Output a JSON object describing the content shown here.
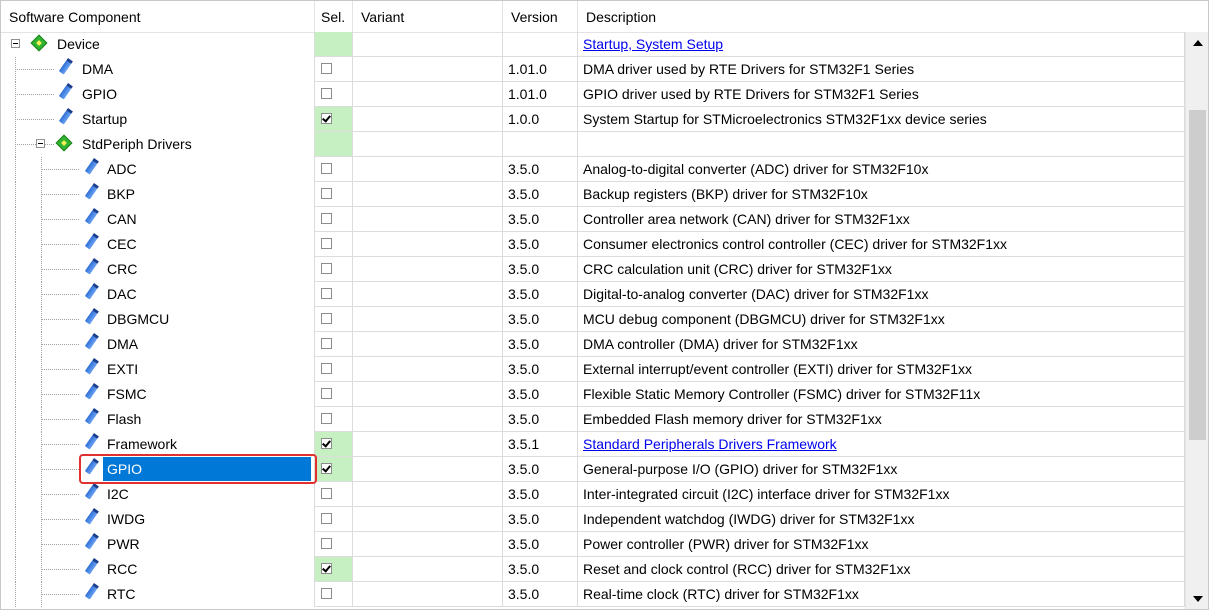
{
  "header": {
    "component": "Software Component",
    "sel": "Sel.",
    "variant": "Variant",
    "version": "Version",
    "description": "Description"
  },
  "rows": [
    {
      "name": "Device",
      "level": 0,
      "type": "group",
      "expanded": true,
      "sel": "group",
      "version": "",
      "description": "Startup, System Setup",
      "desc_link": true
    },
    {
      "name": "DMA",
      "level": 1,
      "type": "item",
      "sel": "unchecked",
      "version": "1.01.0",
      "description": "DMA driver used by RTE Drivers for STM32F1 Series"
    },
    {
      "name": "GPIO",
      "level": 1,
      "type": "item",
      "sel": "unchecked",
      "version": "1.01.0",
      "description": "GPIO driver used by RTE Drivers for STM32F1 Series"
    },
    {
      "name": "Startup",
      "level": 1,
      "type": "item",
      "sel": "checked",
      "version": "1.0.0",
      "description": "System Startup for STMicroelectronics STM32F1xx device series"
    },
    {
      "name": "StdPeriph Drivers",
      "level": 1,
      "type": "group",
      "expanded": true,
      "sel": "group",
      "version": "",
      "description": ""
    },
    {
      "name": "ADC",
      "level": 2,
      "type": "item",
      "sel": "unchecked",
      "version": "3.5.0",
      "description": "Analog-to-digital converter (ADC) driver for STM32F10x"
    },
    {
      "name": "BKP",
      "level": 2,
      "type": "item",
      "sel": "unchecked",
      "version": "3.5.0",
      "description": "Backup registers (BKP) driver for STM32F10x"
    },
    {
      "name": "CAN",
      "level": 2,
      "type": "item",
      "sel": "unchecked",
      "version": "3.5.0",
      "description": "Controller area network (CAN) driver for STM32F1xx"
    },
    {
      "name": "CEC",
      "level": 2,
      "type": "item",
      "sel": "unchecked",
      "version": "3.5.0",
      "description": "Consumer electronics control controller (CEC) driver for STM32F1xx"
    },
    {
      "name": "CRC",
      "level": 2,
      "type": "item",
      "sel": "unchecked",
      "version": "3.5.0",
      "description": "CRC calculation unit (CRC) driver for STM32F1xx"
    },
    {
      "name": "DAC",
      "level": 2,
      "type": "item",
      "sel": "unchecked",
      "version": "3.5.0",
      "description": "Digital-to-analog converter (DAC) driver for STM32F1xx"
    },
    {
      "name": "DBGMCU",
      "level": 2,
      "type": "item",
      "sel": "unchecked",
      "version": "3.5.0",
      "description": "MCU debug component (DBGMCU) driver for STM32F1xx"
    },
    {
      "name": "DMA",
      "level": 2,
      "type": "item",
      "sel": "unchecked",
      "version": "3.5.0",
      "description": "DMA controller (DMA) driver for STM32F1xx"
    },
    {
      "name": "EXTI",
      "level": 2,
      "type": "item",
      "sel": "unchecked",
      "version": "3.5.0",
      "description": "External interrupt/event controller (EXTI) driver for STM32F1xx"
    },
    {
      "name": "FSMC",
      "level": 2,
      "type": "item",
      "sel": "unchecked",
      "version": "3.5.0",
      "description": "Flexible Static Memory Controller (FSMC) driver for STM32F11x"
    },
    {
      "name": "Flash",
      "level": 2,
      "type": "item",
      "sel": "unchecked",
      "version": "3.5.0",
      "description": "Embedded Flash memory driver for STM32F1xx"
    },
    {
      "name": "Framework",
      "level": 2,
      "type": "item",
      "sel": "checked",
      "version": "3.5.1",
      "description": "Standard Peripherals Drivers Framework",
      "desc_link": true
    },
    {
      "name": "GPIO",
      "level": 2,
      "type": "item",
      "sel": "checked",
      "version": "3.5.0",
      "description": "General-purpose I/O (GPIO) driver for STM32F1xx",
      "selected": true
    },
    {
      "name": "I2C",
      "level": 2,
      "type": "item",
      "sel": "unchecked",
      "version": "3.5.0",
      "description": "Inter-integrated circuit (I2C) interface driver for STM32F1xx"
    },
    {
      "name": "IWDG",
      "level": 2,
      "type": "item",
      "sel": "unchecked",
      "version": "3.5.0",
      "description": "Independent watchdog (IWDG) driver for STM32F1xx"
    },
    {
      "name": "PWR",
      "level": 2,
      "type": "item",
      "sel": "unchecked",
      "version": "3.5.0",
      "description": "Power controller (PWR) driver for STM32F1xx"
    },
    {
      "name": "RCC",
      "level": 2,
      "type": "item",
      "sel": "checked",
      "version": "3.5.0",
      "description": "Reset and clock control (RCC) driver for STM32F1xx"
    },
    {
      "name": "RTC",
      "level": 2,
      "type": "item",
      "sel": "unchecked",
      "version": "3.5.0",
      "description": "Real-time clock (RTC) driver for STM32F1xx"
    }
  ],
  "colors": {
    "selected_row_bg": "#0078d7",
    "sel_green": "#c6efc2",
    "link": "#0000ee",
    "highlight_border": "#e03030"
  }
}
